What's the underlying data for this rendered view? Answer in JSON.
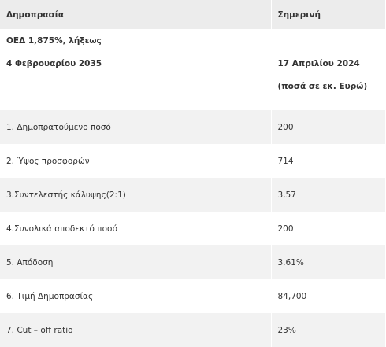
{
  "table": {
    "header": [
      "Δημοπρασία",
      "Σημερινή"
    ],
    "intro": {
      "left": [
        "ΟΕΔ 1,875%, λήξεως",
        "4 Φεβρουαρίου 2035"
      ],
      "right": [
        "17 Απριλίου 2024",
        "(ποσά σε εκ. Ευρώ)"
      ]
    },
    "rows": [
      [
        "1. Δημοπρατούμενο ποσό",
        "200"
      ],
      [
        "2. Ύψος προσφορών",
        "714"
      ],
      [
        "3.Συντελεστής κάλυψης(2:1)",
        "3,57"
      ],
      [
        "4.Συνολικά αποδεκτό ποσό",
        "200"
      ],
      [
        "5. Απόδοση",
        "3,61%"
      ],
      [
        "6. Τιμή Δημοπρασίας",
        "84,700"
      ],
      [
        "7. Cut – off ratio",
        "23%"
      ]
    ]
  }
}
